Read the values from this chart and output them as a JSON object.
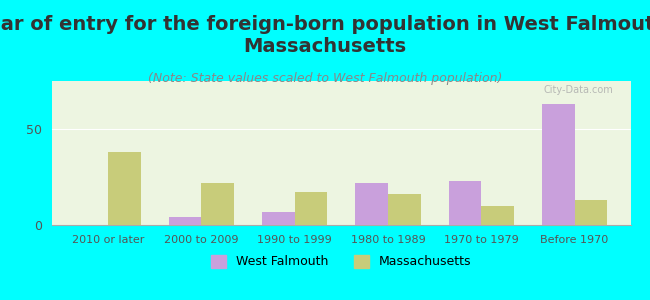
{
  "title": "Year of entry for the foreign-born population in West Falmouth,\nMassachusetts",
  "subtitle": "(Note: State values scaled to West Falmouth population)",
  "categories": [
    "2010 or later",
    "2000 to 2009",
    "1990 to 1999",
    "1980 to 1989",
    "1970 to 1979",
    "Before 1970"
  ],
  "west_falmouth": [
    0,
    4,
    7,
    22,
    23,
    63
  ],
  "massachusetts": [
    38,
    22,
    17,
    16,
    10,
    13
  ],
  "wf_color": "#c9a0dc",
  "ma_color": "#c8cc7a",
  "bg_color": "#00ffff",
  "plot_bg": "#edf5e1",
  "title_fontsize": 14,
  "subtitle_fontsize": 9,
  "legend_wf": "West Falmouth",
  "legend_ma": "Massachusetts"
}
